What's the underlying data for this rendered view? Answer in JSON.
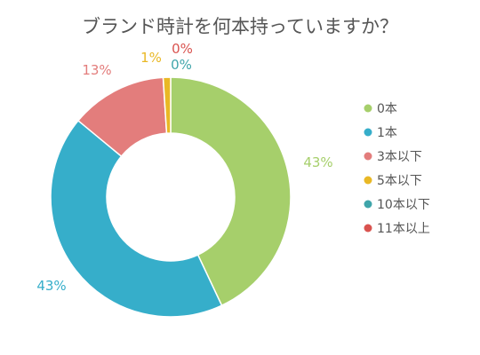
{
  "chart_data": {
    "type": "pie",
    "title": "ブランド時計を何本持っていますか？",
    "slices": [
      {
        "label": "0本",
        "value": 43,
        "color": "#a6cf6b"
      },
      {
        "label": "1本",
        "value": 43,
        "color": "#36aeca"
      },
      {
        "label": "3本以下",
        "value": 13,
        "color": "#e37d7c"
      },
      {
        "label": "5本以下",
        "value": 1,
        "color": "#e9b825"
      },
      {
        "label": "10本以下",
        "value": 0,
        "color": "#3fa5aa"
      },
      {
        "label": "11本以上",
        "value": 0,
        "color": "#d9534f"
      }
    ],
    "value_labels": [
      "43%",
      "43%",
      "13%",
      "1%",
      "0%",
      "0%"
    ],
    "legend_position": "right"
  }
}
